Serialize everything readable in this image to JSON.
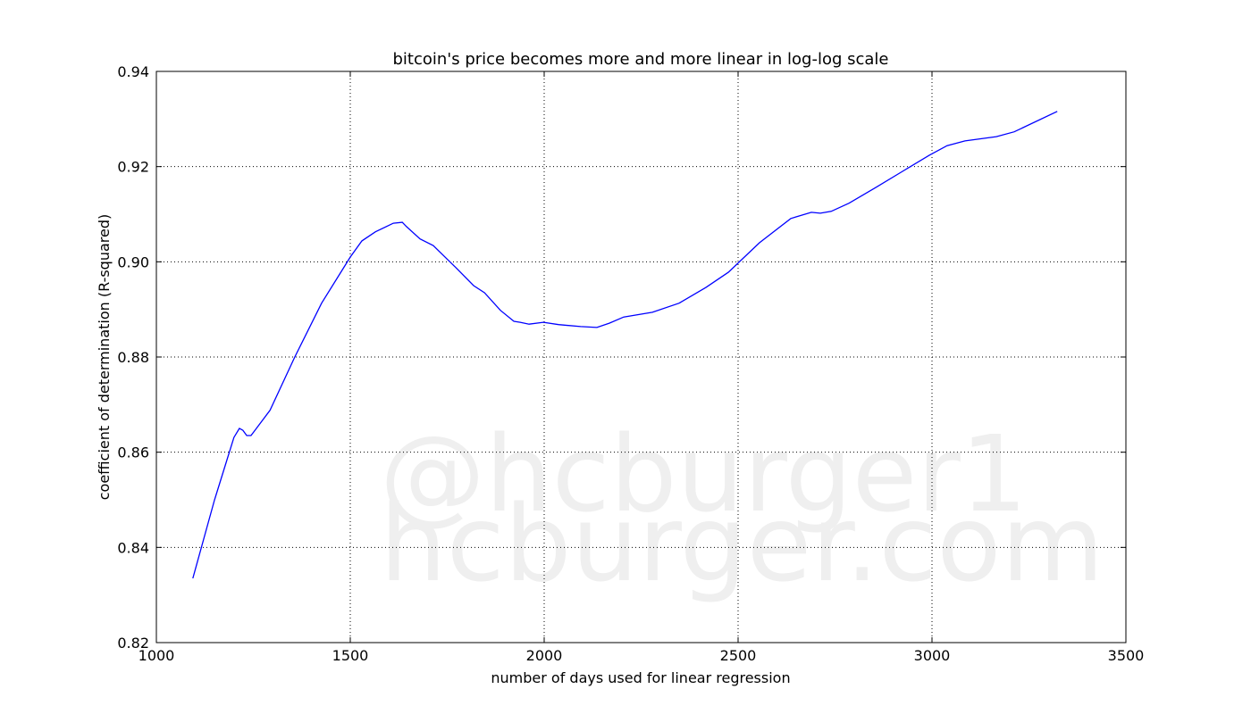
{
  "chart_data": {
    "type": "line",
    "title": "bitcoin's price becomes more and more linear in log-log scale",
    "x_label": "number of days used for linear regression",
    "y_label": "coefficient of determination (R-squared)",
    "watermark": [
      "@hcburger1",
      "hcburger.com"
    ],
    "color": "#0000ff",
    "grid": true,
    "xlim": [
      1000,
      3500
    ],
    "ylim": [
      0.82,
      0.94
    ],
    "xticks": [
      1000,
      1500,
      2000,
      2500,
      3000,
      3500
    ],
    "yticks": [
      0.82,
      0.84,
      0.86,
      0.88,
      {
        "value": 0.9,
        "label": "0.90"
      },
      0.92,
      0.94
    ],
    "x": [
      1094,
      1150,
      1200,
      1214,
      1223,
      1233,
      1244,
      1256,
      1293,
      1357,
      1426,
      1500,
      1530,
      1565,
      1611,
      1634,
      1645,
      1680,
      1714,
      1772,
      1818,
      1846,
      1887,
      1922,
      1938,
      1961,
      1998,
      2037,
      2094,
      2136,
      2168,
      2205,
      2279,
      2348,
      2417,
      2475,
      2555,
      2636,
      2689,
      2712,
      2740,
      2786,
      2855,
      2924,
      2993,
      3039,
      3085,
      3166,
      3212,
      3323
    ],
    "values": [
      0.8335,
      0.85,
      0.8631,
      0.865,
      0.8646,
      0.8635,
      0.8635,
      0.8648,
      0.8688,
      0.88,
      0.8913,
      0.901,
      0.9044,
      0.9063,
      0.9081,
      0.9083,
      0.9074,
      0.9048,
      0.9034,
      0.8988,
      0.895,
      0.8935,
      0.8898,
      0.8875,
      0.8873,
      0.8869,
      0.8873,
      0.8868,
      0.8864,
      0.8862,
      0.8871,
      0.8884,
      0.8894,
      0.8913,
      0.8946,
      0.8978,
      0.904,
      0.9091,
      0.9104,
      0.9102,
      0.9106,
      0.9123,
      0.9156,
      0.919,
      0.9224,
      0.9244,
      0.9254,
      0.9263,
      0.9273,
      0.9316
    ]
  }
}
